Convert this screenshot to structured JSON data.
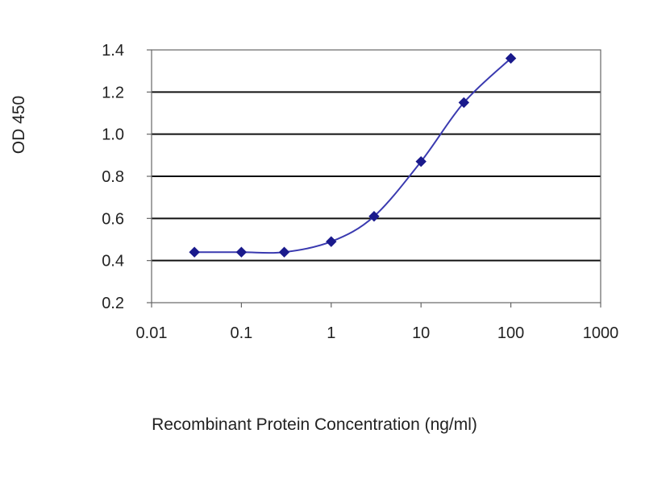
{
  "chart_data": {
    "type": "line",
    "title": "",
    "xlabel": "Recombinant Protein Concentration (ng/ml)",
    "ylabel": "OD 450",
    "x_scale": "log",
    "xlim": [
      0.01,
      1000
    ],
    "ylim": [
      0.2,
      1.4
    ],
    "x_ticks": [
      "0.01",
      "0.1",
      "1",
      "10",
      "100",
      "1000"
    ],
    "x_tick_values": [
      0.01,
      0.1,
      1,
      10,
      100,
      1000
    ],
    "y_ticks": [
      "0.2",
      "0.4",
      "0.6",
      "0.8",
      "1.0",
      "1.2",
      "1.4"
    ],
    "y_tick_values": [
      0.2,
      0.4,
      0.6,
      0.8,
      1.0,
      1.2,
      1.4
    ],
    "grid": "horizontal",
    "legend": "none",
    "series": [
      {
        "x": [
          0.03,
          0.1,
          0.3,
          1,
          3,
          10,
          30,
          100
        ],
        "y": [
          0.44,
          0.44,
          0.44,
          0.49,
          0.61,
          0.87,
          1.15,
          1.36
        ]
      }
    ],
    "colors": {
      "line": "#3a3ab0",
      "marker": "#1a1a8c",
      "grid": "#111111",
      "frame": "#666666"
    }
  }
}
